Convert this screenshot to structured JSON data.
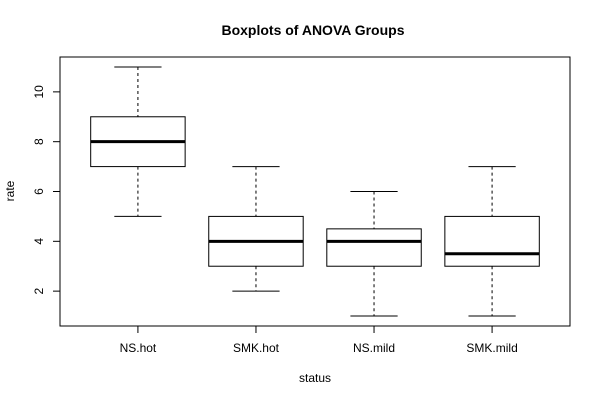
{
  "chart_data": {
    "type": "boxplot",
    "title": "Boxplots of ANOVA Groups",
    "xlabel": "status",
    "ylabel": "rate",
    "categories": [
      "NS.hot",
      "SMK.hot",
      "NS.mild",
      "SMK.mild"
    ],
    "boxes": [
      {
        "min": 5,
        "q1": 7,
        "median": 8,
        "q3": 9,
        "max": 11
      },
      {
        "min": 2,
        "q1": 3,
        "median": 4,
        "q3": 5,
        "max": 7
      },
      {
        "min": 1,
        "q1": 3,
        "median": 4,
        "q3": 4.5,
        "max": 6
      },
      {
        "min": 1,
        "q1": 3,
        "median": 3.5,
        "q3": 5,
        "max": 7
      }
    ],
    "yticks": [
      2,
      4,
      6,
      8,
      10
    ],
    "ylim": [
      0.6,
      11.4
    ],
    "grid": false,
    "colors": {
      "box_fill": "#ffffff",
      "line": "#000000"
    }
  }
}
